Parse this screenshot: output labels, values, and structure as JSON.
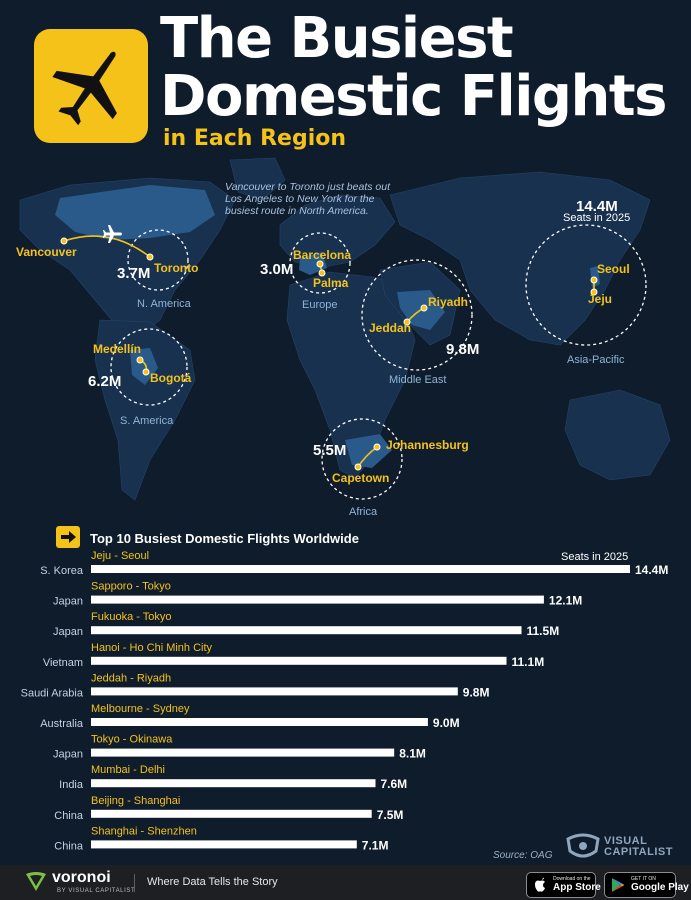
{
  "header": {
    "title_line1": "The Busiest",
    "title_line2": "Domestic Flights",
    "subtitle": "in Each Region",
    "icon": "airplane-icon"
  },
  "map": {
    "note": "Vancouver to Toronto just beats out Los Angeles to New York for the busiest route in North America.",
    "routes": [
      {
        "region": "N. America",
        "from": "Vancouver",
        "to": "Toronto",
        "seats": "3.7M"
      },
      {
        "region": "Europe",
        "from": "Barcelona",
        "to": "Palma",
        "seats": "3.0M"
      },
      {
        "region": "Middle East",
        "from": "Riyadh",
        "to": "Jeddah",
        "seats": "9.8M"
      },
      {
        "region": "Asia-Pacific",
        "from": "Seoul",
        "to": "Jeju",
        "seats": "14.4M",
        "seats_note": "Seats in 2025"
      },
      {
        "region": "S. America",
        "from": "Medellín",
        "to": "Bogotá",
        "seats": "6.2M"
      },
      {
        "region": "Africa",
        "from": "Johannesburg",
        "to": "Capetown",
        "seats": "5.5M"
      }
    ]
  },
  "chart_data": {
    "type": "bar",
    "title": "Top 10 Busiest Domestic Flights Worldwide",
    "unit_note": "Seats in 2025",
    "categories": [
      "Jeju - Seoul",
      "Sapporo - Tokyo",
      "Fukuoka - Tokyo",
      "Hanoi - Ho Chi Minh City",
      "Jeddah - Riyadh",
      "Melbourne - Sydney",
      "Tokyo - Okinawa",
      "Mumbai - Delhi",
      "Beijing - Shanghai",
      "Shanghai - Shenzhen"
    ],
    "countries": [
      "S. Korea",
      "Japan",
      "Japan",
      "Vietnam",
      "Saudi Arabia",
      "Australia",
      "Japan",
      "India",
      "China",
      "China"
    ],
    "values": [
      14.4,
      12.1,
      11.5,
      11.1,
      9.8,
      9.0,
      8.1,
      7.6,
      7.5,
      7.1
    ],
    "value_labels": [
      "14.4M",
      "12.1M",
      "11.5M",
      "11.1M",
      "9.8M",
      "9.0M",
      "8.1M",
      "7.6M",
      "7.5M",
      "7.1M"
    ],
    "bar_color": "#ffffff",
    "label_color": "#f5c21a"
  },
  "source": "Source: OAG",
  "brand": {
    "publisher": "VISUAL CAPITALIST",
    "platform": "voronoi",
    "platform_sub": "BY VISUAL CAPITALIST",
    "tagline": "Where Data Tells the Story",
    "app_store_small": "Download on the",
    "app_store": "App Store",
    "google_play_small": "GET IT ON",
    "google_play": "Google Play"
  },
  "colors": {
    "accent": "#f5c21a",
    "background": "#0f1c2b",
    "land": "#1d3a5a"
  }
}
